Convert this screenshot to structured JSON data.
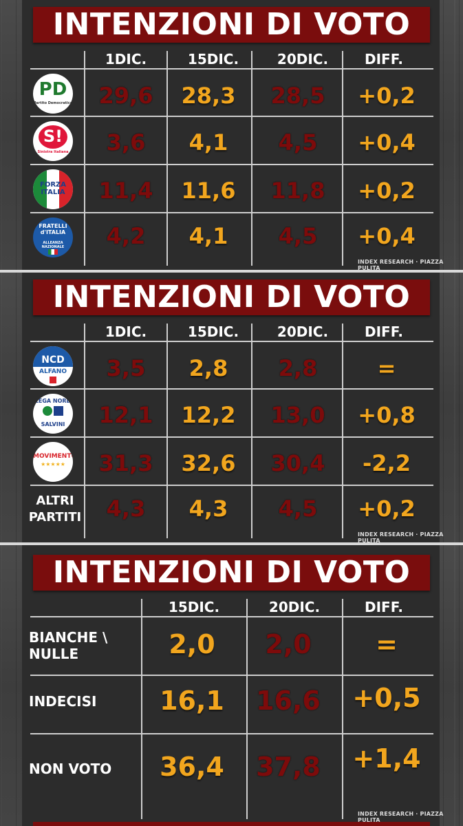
{
  "credit": "INDEX RESEARCH · PIAZZA PULITA",
  "chart_data": [
    {
      "type": "table",
      "title": "INTENZIONI DI VOTO",
      "columns": [
        "1DIC.",
        "15DIC.",
        "20DIC.",
        "DIFF."
      ],
      "rows": [
        {
          "label": "Partito Democratico",
          "logo": "pd-logo",
          "logo_text": "PD",
          "logo_sub": "Partito Democratico",
          "values": [
            "29,6",
            "28,3",
            "28,5",
            "+0,2"
          ]
        },
        {
          "label": "Sinistra Italiana",
          "logo": "si-logo",
          "logo_text": "S!",
          "logo_sub": "Sinistra Italiana",
          "values": [
            "3,6",
            "4,1",
            "4,5",
            "+0,4"
          ]
        },
        {
          "label": "Forza Italia",
          "logo": "fi-logo",
          "logo_text": "FORZA ITALIA",
          "logo_sub": "",
          "values": [
            "11,4",
            "11,6",
            "11,8",
            "+0,2"
          ]
        },
        {
          "label": "Fratelli d'Italia",
          "logo": "fdi-logo",
          "logo_text": "FRATELLI d'ITALIA",
          "logo_sub": "ALLEANZA NAZIONALE",
          "values": [
            "4,2",
            "4,1",
            "4,5",
            "+0,4"
          ]
        }
      ]
    },
    {
      "type": "table",
      "title": "INTENZIONI DI VOTO",
      "columns": [
        "1DIC.",
        "15DIC.",
        "20DIC.",
        "DIFF."
      ],
      "rows": [
        {
          "label": "NCD Alfano",
          "logo": "ncd-logo",
          "logo_text": "NCD",
          "logo_sub": "ALFANO",
          "values": [
            "3,5",
            "2,8",
            "2,8",
            "="
          ]
        },
        {
          "label": "Lega Nord Salvini",
          "logo": "lega-logo",
          "logo_text": "LEGA NORD",
          "logo_sub": "SALVINI",
          "values": [
            "12,1",
            "12,2",
            "13,0",
            "+0,8"
          ]
        },
        {
          "label": "MoVimento 5 Stelle",
          "logo": "m5s-logo",
          "logo_text": "MOVIMENTO",
          "logo_sub": "★★★★★",
          "values": [
            "31,3",
            "32,6",
            "30,4",
            "-2,2"
          ]
        },
        {
          "label": "ALTRI PARTITI",
          "logo": "",
          "logo_text": "",
          "logo_sub": "",
          "values": [
            "4,3",
            "4,3",
            "4,5",
            "+0,2"
          ]
        }
      ]
    },
    {
      "type": "table",
      "title": "INTENZIONI DI VOTO",
      "columns": [
        "15DIC.",
        "20DIC.",
        "DIFF."
      ],
      "rows": [
        {
          "label": "BIANCHE \\ NULLE",
          "values": [
            "2,0",
            "2,0",
            "="
          ]
        },
        {
          "label": "INDECISI",
          "values": [
            "16,1",
            "16,6",
            "+0,5"
          ]
        },
        {
          "label": "NON VOTO",
          "values": [
            "36,4",
            "37,8",
            "+1,4"
          ]
        }
      ]
    }
  ]
}
